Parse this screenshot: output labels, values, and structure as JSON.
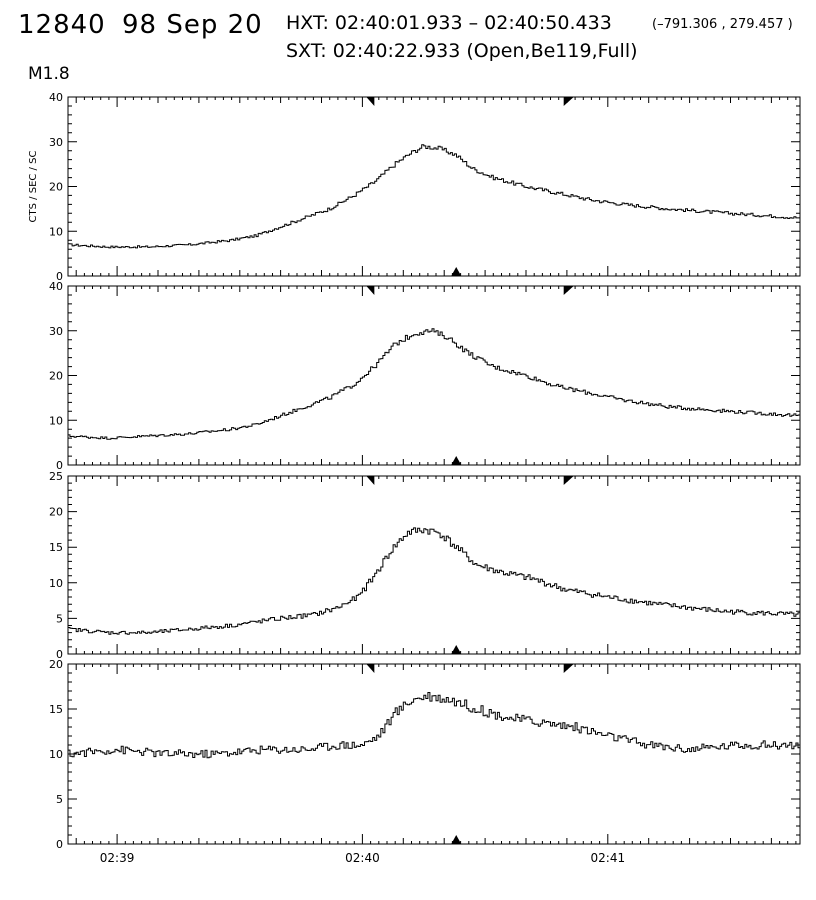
{
  "header": {
    "event_id": "12840",
    "date": "98 Sep 20",
    "hxt": "HXT: 02:40:01.933 – 02:40:50.433",
    "coords": "(–791.306 , 279.457 )",
    "sxt": "SXT: 02:40:22.933 (Open,Be119,Full)",
    "flare_class": "M1.8"
  },
  "colors": {
    "line": "#000000",
    "background": "#ffffff"
  },
  "chart_data": [
    {
      "type": "line",
      "ylabel": "CTS / SEC / SC",
      "ylim": [
        0,
        40
      ],
      "yticks": [
        0,
        10,
        20,
        30,
        40
      ],
      "xlim_sec": [
        -72,
        107
      ],
      "xticks": [
        "02:39",
        "02:40",
        "02:41"
      ],
      "hxt_interval": [
        "02:40:01.933",
        "02:40:50.433"
      ],
      "sxt_time": "02:40:22.933",
      "series": [
        {
          "values": [
            [
              -72,
              7
            ],
            [
              -62,
              6.5
            ],
            [
              -52,
              6.5
            ],
            [
              -42,
              7
            ],
            [
              -32,
              8
            ],
            [
              -26,
              9
            ],
            [
              -20,
              11
            ],
            [
              -14,
              13
            ],
            [
              -8,
              15
            ],
            [
              -2,
              18
            ],
            [
              3,
              21
            ],
            [
              8,
              25
            ],
            [
              12,
              27.5
            ],
            [
              15,
              29
            ],
            [
              19,
              28.5
            ],
            [
              23,
              27
            ],
            [
              27,
              24
            ],
            [
              32,
              22
            ],
            [
              40,
              20
            ],
            [
              48,
              18.5
            ],
            [
              56,
              17
            ],
            [
              64,
              16
            ],
            [
              75,
              15
            ],
            [
              90,
              14
            ],
            [
              107,
              13
            ]
          ]
        }
      ]
    },
    {
      "type": "line",
      "ylim": [
        0,
        40
      ],
      "yticks": [
        0,
        10,
        20,
        30,
        40
      ],
      "xlim_sec": [
        -72,
        107
      ],
      "xticks": [
        "02:39",
        "02:40",
        "02:41"
      ],
      "series": [
        {
          "values": [
            [
              -72,
              6.5
            ],
            [
              -62,
              6
            ],
            [
              -52,
              6.5
            ],
            [
              -42,
              7
            ],
            [
              -32,
              8
            ],
            [
              -26,
              9
            ],
            [
              -20,
              11
            ],
            [
              -14,
              13
            ],
            [
              -8,
              15
            ],
            [
              -2,
              18
            ],
            [
              3,
              22
            ],
            [
              8,
              27
            ],
            [
              13,
              29.5
            ],
            [
              17,
              30
            ],
            [
              21,
              28.5
            ],
            [
              26,
              25
            ],
            [
              32,
              22
            ],
            [
              40,
              20
            ],
            [
              48,
              17.5
            ],
            [
              56,
              16
            ],
            [
              64,
              14.5
            ],
            [
              75,
              13
            ],
            [
              90,
              12
            ],
            [
              107,
              11
            ]
          ]
        }
      ]
    },
    {
      "type": "line",
      "ylim": [
        0,
        25
      ],
      "yticks": [
        0,
        5,
        10,
        15,
        20,
        25
      ],
      "xlim_sec": [
        -72,
        107
      ],
      "xticks": [
        "02:39",
        "02:40",
        "02:41"
      ],
      "series": [
        {
          "values": [
            [
              -72,
              3.5
            ],
            [
              -62,
              3
            ],
            [
              -52,
              3
            ],
            [
              -42,
              3.5
            ],
            [
              -32,
              4
            ],
            [
              -26,
              4.5
            ],
            [
              -20,
              5
            ],
            [
              -12,
              5.5
            ],
            [
              -6,
              6.5
            ],
            [
              -1,
              8
            ],
            [
              3,
              11
            ],
            [
              7,
              14.5
            ],
            [
              11,
              17
            ],
            [
              15,
              17.5
            ],
            [
              19,
              17
            ],
            [
              23,
              15
            ],
            [
              28,
              12.5
            ],
            [
              34,
              11.5
            ],
            [
              42,
              10.5
            ],
            [
              50,
              9
            ],
            [
              60,
              8
            ],
            [
              72,
              7
            ],
            [
              88,
              6
            ],
            [
              107,
              5.5
            ]
          ]
        }
      ]
    },
    {
      "type": "line",
      "ylim": [
        0,
        20
      ],
      "yticks": [
        0,
        5,
        10,
        15,
        20
      ],
      "xlim_sec": [
        -72,
        107
      ],
      "xticks": [
        "02:39",
        "02:40",
        "02:41"
      ],
      "series": [
        {
          "values": [
            [
              -72,
              10
            ],
            [
              -60,
              10.5
            ],
            [
              -48,
              10
            ],
            [
              -36,
              10
            ],
            [
              -24,
              10.5
            ],
            [
              -14,
              10.5
            ],
            [
              -6,
              11
            ],
            [
              0,
              11
            ],
            [
              4,
              12
            ],
            [
              8,
              14.5
            ],
            [
              12,
              16
            ],
            [
              16,
              16.5
            ],
            [
              22,
              16
            ],
            [
              28,
              15
            ],
            [
              36,
              14
            ],
            [
              44,
              13.5
            ],
            [
              52,
              13
            ],
            [
              60,
              12
            ],
            [
              70,
              11
            ],
            [
              80,
              10.5
            ],
            [
              92,
              11
            ],
            [
              107,
              11
            ]
          ]
        }
      ]
    }
  ]
}
